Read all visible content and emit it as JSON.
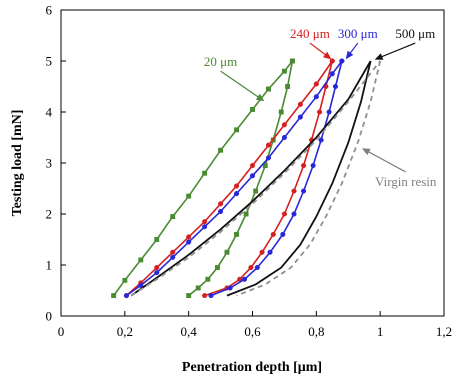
{
  "chart_data": {
    "type": "line",
    "xlabel": "Penetration depth [μm]",
    "ylabel": "Testing load [mN]",
    "xlim": [
      0,
      1.2
    ],
    "ylim": [
      0,
      6
    ],
    "xticks": [
      "0",
      "0,2",
      "0,4",
      "0,6",
      "0,8",
      "1",
      "1,2"
    ],
    "yticks": [
      "0",
      "1",
      "2",
      "3",
      "4",
      "5",
      "6"
    ],
    "grid": false,
    "series": [
      {
        "name": "20 μm",
        "color": "#4a8a32",
        "marker": "square",
        "loading": [
          [
            0.165,
            0.4
          ],
          [
            0.2,
            0.7
          ],
          [
            0.25,
            1.1
          ],
          [
            0.3,
            1.5
          ],
          [
            0.35,
            1.95
          ],
          [
            0.4,
            2.35
          ],
          [
            0.45,
            2.8
          ],
          [
            0.5,
            3.25
          ],
          [
            0.55,
            3.65
          ],
          [
            0.6,
            4.05
          ],
          [
            0.65,
            4.45
          ],
          [
            0.7,
            4.8
          ],
          [
            0.725,
            5.0
          ]
        ],
        "unloading": [
          [
            0.725,
            5.0
          ],
          [
            0.71,
            4.5
          ],
          [
            0.69,
            4.0
          ],
          [
            0.665,
            3.45
          ],
          [
            0.64,
            2.95
          ],
          [
            0.61,
            2.45
          ],
          [
            0.58,
            2.0
          ],
          [
            0.55,
            1.6
          ],
          [
            0.52,
            1.25
          ],
          [
            0.49,
            0.95
          ],
          [
            0.46,
            0.72
          ],
          [
            0.43,
            0.55
          ],
          [
            0.4,
            0.4
          ]
        ]
      },
      {
        "name": "240 μm",
        "color": "#d42020",
        "marker": "circle",
        "loading": [
          [
            0.205,
            0.4
          ],
          [
            0.25,
            0.65
          ],
          [
            0.3,
            0.95
          ],
          [
            0.35,
            1.25
          ],
          [
            0.4,
            1.55
          ],
          [
            0.45,
            1.85
          ],
          [
            0.5,
            2.2
          ],
          [
            0.55,
            2.55
          ],
          [
            0.6,
            2.95
          ],
          [
            0.65,
            3.35
          ],
          [
            0.7,
            3.75
          ],
          [
            0.75,
            4.15
          ],
          [
            0.8,
            4.55
          ],
          [
            0.85,
            5.0
          ]
        ],
        "unloading": [
          [
            0.85,
            5.0
          ],
          [
            0.83,
            4.5
          ],
          [
            0.81,
            4.0
          ],
          [
            0.785,
            3.45
          ],
          [
            0.76,
            2.95
          ],
          [
            0.73,
            2.45
          ],
          [
            0.7,
            2.0
          ],
          [
            0.665,
            1.6
          ],
          [
            0.63,
            1.25
          ],
          [
            0.595,
            0.95
          ],
          [
            0.56,
            0.72
          ],
          [
            0.52,
            0.55
          ],
          [
            0.45,
            0.4
          ]
        ]
      },
      {
        "name": "300 μm",
        "color": "#2828d8",
        "marker": "circle",
        "loading": [
          [
            0.205,
            0.4
          ],
          [
            0.25,
            0.6
          ],
          [
            0.3,
            0.85
          ],
          [
            0.35,
            1.15
          ],
          [
            0.4,
            1.45
          ],
          [
            0.45,
            1.75
          ],
          [
            0.5,
            2.05
          ],
          [
            0.55,
            2.4
          ],
          [
            0.6,
            2.75
          ],
          [
            0.65,
            3.1
          ],
          [
            0.7,
            3.5
          ],
          [
            0.75,
            3.9
          ],
          [
            0.8,
            4.3
          ],
          [
            0.85,
            4.75
          ],
          [
            0.88,
            5.0
          ]
        ],
        "unloading": [
          [
            0.88,
            5.0
          ],
          [
            0.86,
            4.5
          ],
          [
            0.84,
            4.0
          ],
          [
            0.815,
            3.45
          ],
          [
            0.79,
            2.95
          ],
          [
            0.76,
            2.45
          ],
          [
            0.73,
            2.0
          ],
          [
            0.695,
            1.6
          ],
          [
            0.655,
            1.25
          ],
          [
            0.615,
            0.95
          ],
          [
            0.575,
            0.72
          ],
          [
            0.53,
            0.55
          ],
          [
            0.47,
            0.4
          ]
        ]
      },
      {
        "name": "500 μm",
        "color": "#111111",
        "marker": "none",
        "loading": [
          [
            0.22,
            0.4
          ],
          [
            0.3,
            0.75
          ],
          [
            0.4,
            1.2
          ],
          [
            0.5,
            1.7
          ],
          [
            0.6,
            2.25
          ],
          [
            0.7,
            2.85
          ],
          [
            0.8,
            3.5
          ],
          [
            0.9,
            4.25
          ],
          [
            0.97,
            5.0
          ]
        ],
        "unloading": [
          [
            0.97,
            5.0
          ],
          [
            0.94,
            4.2
          ],
          [
            0.9,
            3.4
          ],
          [
            0.85,
            2.6
          ],
          [
            0.8,
            1.95
          ],
          [
            0.75,
            1.4
          ],
          [
            0.69,
            0.95
          ],
          [
            0.61,
            0.62
          ],
          [
            0.52,
            0.4
          ]
        ]
      },
      {
        "name": "Virgin resin",
        "color": "#909090",
        "marker": "none",
        "dashed": true,
        "loading": [
          [
            0.22,
            0.4
          ],
          [
            0.3,
            0.72
          ],
          [
            0.4,
            1.15
          ],
          [
            0.5,
            1.65
          ],
          [
            0.6,
            2.2
          ],
          [
            0.7,
            2.8
          ],
          [
            0.8,
            3.45
          ],
          [
            0.9,
            4.2
          ],
          [
            1.0,
            5.0
          ]
        ],
        "unloading": [
          [
            1.0,
            5.0
          ],
          [
            0.97,
            4.2
          ],
          [
            0.93,
            3.4
          ],
          [
            0.88,
            2.6
          ],
          [
            0.83,
            1.95
          ],
          [
            0.78,
            1.4
          ],
          [
            0.72,
            0.95
          ],
          [
            0.64,
            0.62
          ],
          [
            0.55,
            0.4
          ]
        ]
      }
    ],
    "annotations": [
      {
        "text": "20 μm",
        "color": "#4a8a32",
        "tx": 0.5,
        "ty": 4.9,
        "ax": 0.64,
        "ay": 4.2
      },
      {
        "text": "240 μm",
        "color": "#d42020",
        "tx": 0.78,
        "ty": 5.45,
        "ax": 0.85,
        "ay": 5.02
      },
      {
        "text": "300 μm",
        "color": "#2828d8",
        "tx": 0.93,
        "ty": 5.45,
        "ax": 0.89,
        "ay": 5.02
      },
      {
        "text": "500 μm",
        "color": "#111111",
        "tx": 1.11,
        "ty": 5.45,
        "ax": 0.98,
        "ay": 5.02
      },
      {
        "text": "Virgin resin",
        "color": "#808080",
        "tx": 1.08,
        "ty": 2.55,
        "ax": 0.94,
        "ay": 3.3
      }
    ]
  }
}
